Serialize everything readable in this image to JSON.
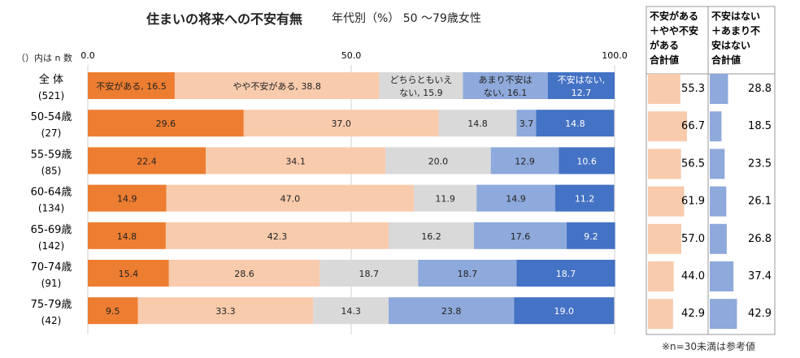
{
  "header": {
    "title": "住まいの将来への不安有無",
    "subtitle": "年代別（%） 50 ～79歳女性"
  },
  "row_header_label": "（）内は n 数",
  "footnote": "※n=30未満は参考値",
  "colors": {
    "very_anxious": "#ED7D31",
    "somewhat_anxious": "#F8CBAD",
    "neutral": "#D9D9D9",
    "not_very": "#8EA9DB",
    "not_anxious": "#4472C4"
  },
  "chart_data": [
    {
      "type": "bar",
      "orientation": "horizontal",
      "stacked": true,
      "normalized": true,
      "title": "住まいの将来への不安有無",
      "xlim": [
        0,
        100
      ],
      "xticks": [
        "0.0",
        "50.0",
        "100.0"
      ],
      "categories": [
        {
          "name": "全 体",
          "n": "(521)"
        },
        {
          "name": "50-54歳",
          "n": "(27)"
        },
        {
          "name": "55-59歳",
          "n": "(85)"
        },
        {
          "name": "60-64歳",
          "n": "(134)"
        },
        {
          "name": "65-69歳",
          "n": "(142)"
        },
        {
          "name": "70-74歳",
          "n": "(91)"
        },
        {
          "name": "75-79歳",
          "n": "(42)"
        }
      ],
      "series": [
        {
          "name": "不安がある",
          "color_key": "very_anxious",
          "values": [
            16.5,
            29.6,
            22.4,
            14.9,
            14.8,
            15.4,
            9.5
          ]
        },
        {
          "name": "やや不安がある",
          "color_key": "somewhat_anxious",
          "values": [
            38.8,
            37.0,
            34.1,
            47.0,
            42.3,
            28.6,
            33.3
          ]
        },
        {
          "name": "どちらともいえない",
          "color_key": "neutral",
          "values": [
            15.9,
            14.8,
            20.0,
            11.9,
            16.2,
            18.7,
            14.3
          ]
        },
        {
          "name": "あまり不安はない",
          "color_key": "not_very",
          "values": [
            16.1,
            3.7,
            12.9,
            14.9,
            17.6,
            18.7,
            23.8
          ]
        },
        {
          "name": "不安はない",
          "color_key": "not_anxious",
          "values": [
            12.7,
            14.8,
            10.6,
            11.2,
            9.2,
            18.7,
            19.0
          ]
        }
      ],
      "first_row_labels": [
        [
          "不安がある, 16.5"
        ],
        [
          "やや不安がある, 38.8"
        ],
        [
          "どちらともいえ",
          "ない, 15.9"
        ],
        [
          "あまり不安は",
          "ない, 16.1"
        ],
        [
          "不安はない,",
          "12.7"
        ]
      ],
      "legend": "inline labels on first row"
    },
    {
      "type": "bar",
      "orientation": "horizontal",
      "title": "不安がある＋やや不安がある合計値",
      "header_lines": [
        "不安がある",
        "＋やや不安",
        "がある",
        "合計値"
      ],
      "values": [
        55.3,
        66.7,
        56.5,
        61.9,
        57.0,
        44.0,
        42.9
      ],
      "labels": [
        "55.3",
        "66.7",
        "56.5",
        "61.9",
        "57.0",
        "44.0",
        "42.9"
      ],
      "color_key": "somewhat_anxious",
      "xlim": [
        0,
        100
      ]
    },
    {
      "type": "bar",
      "orientation": "horizontal",
      "title": "不安はない＋あまり不安はない合計値",
      "header_lines": [
        "不安はない",
        "＋あまり不",
        "安はない",
        "合計値"
      ],
      "values": [
        28.8,
        18.5,
        23.5,
        26.1,
        26.8,
        37.4,
        42.9
      ],
      "labels": [
        "28.8",
        "18.5",
        "23.5",
        "26.1",
        "26.8",
        "37.4",
        "42.9"
      ],
      "color_key": "not_very",
      "xlim": [
        0,
        100
      ]
    }
  ]
}
